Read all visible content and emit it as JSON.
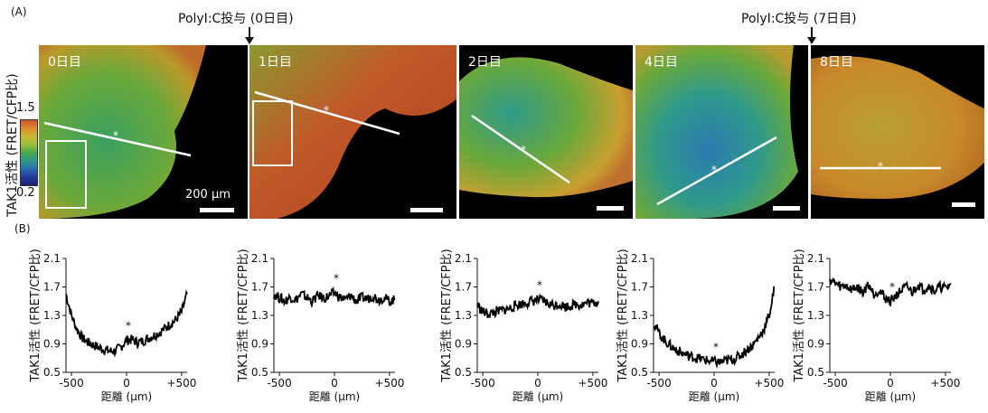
{
  "figure": {
    "label_a": "(A)",
    "label_b": "(B)",
    "arrow_labels": [
      "PolyI:C投与 (0日目)",
      "PolyI:C投与 (7日目)"
    ]
  },
  "colorbar": {
    "title": "TAK1活性 (FRET/CFP比)",
    "max": "1.5",
    "min": "0.2",
    "colors": [
      "#d4542a",
      "#d98a2a",
      "#c8b830",
      "#9cbd38",
      "#4aa84a",
      "#2f9a8a",
      "#2a6fb0",
      "#24389a",
      "#1a2070"
    ]
  },
  "micrographs": [
    {
      "day": "0日目",
      "scale_text": "200 μm"
    },
    {
      "day": "1日目",
      "scale_text": ""
    },
    {
      "day": "2日目",
      "scale_text": ""
    },
    {
      "day": "4日目",
      "scale_text": ""
    },
    {
      "day": "8日目",
      "scale_text": ""
    }
  ],
  "chart_data": [
    {
      "type": "line",
      "ylabel": "TAK1活性 (FRET/CFP比)",
      "xlabel": "距離 (μm)",
      "x_ticks": [
        "-500",
        "0",
        "+500"
      ],
      "y_ticks": [
        "2.1",
        "1.7",
        "1.3",
        "0.9",
        "0.5"
      ],
      "xlim": [
        -550,
        550
      ],
      "ylim": [
        0.5,
        2.1
      ],
      "star": "*",
      "x": [
        -550,
        -500,
        -450,
        -400,
        -350,
        -300,
        -250,
        -200,
        -150,
        -100,
        -50,
        0,
        50,
        100,
        150,
        200,
        250,
        300,
        350,
        400,
        450,
        500,
        550
      ],
      "y": [
        1.6,
        1.3,
        1.1,
        0.98,
        0.92,
        0.88,
        0.85,
        0.82,
        0.8,
        0.8,
        0.86,
        0.95,
        0.96,
        0.92,
        0.94,
        0.98,
        1.02,
        1.06,
        1.12,
        1.18,
        1.24,
        1.35,
        1.6
      ]
    },
    {
      "type": "line",
      "ylabel": "TAK1活性 (FRET/CFP比)",
      "xlabel": "距離 (μm)",
      "x_ticks": [
        "-500",
        "0",
        "+500"
      ],
      "y_ticks": [
        "2.1",
        "1.7",
        "1.3",
        "0.9",
        "0.5"
      ],
      "xlim": [
        -550,
        550
      ],
      "ylim": [
        0.5,
        2.1
      ],
      "star": "*",
      "x": [
        -550,
        -500,
        -450,
        -400,
        -350,
        -300,
        -250,
        -200,
        -150,
        -100,
        -50,
        0,
        50,
        100,
        150,
        200,
        250,
        300,
        350,
        400,
        450,
        500,
        550
      ],
      "y": [
        1.6,
        1.55,
        1.5,
        1.56,
        1.52,
        1.6,
        1.55,
        1.5,
        1.58,
        1.54,
        1.57,
        1.62,
        1.55,
        1.52,
        1.58,
        1.5,
        1.55,
        1.53,
        1.58,
        1.52,
        1.55,
        1.5,
        1.52
      ]
    },
    {
      "type": "line",
      "ylabel": "TAK1活性 (FRET/CFP比)",
      "xlabel": "距離 (μm)",
      "x_ticks": [
        "-500",
        "0",
        "+500"
      ],
      "y_ticks": [
        "2.1",
        "1.7",
        "1.3",
        "0.9",
        "0.5"
      ],
      "xlim": [
        -550,
        550
      ],
      "ylim": [
        0.5,
        2.1
      ],
      "star": "*",
      "x": [
        -550,
        -500,
        -450,
        -400,
        -350,
        -300,
        -250,
        -200,
        -150,
        -100,
        -50,
        0,
        50,
        100,
        150,
        200,
        250,
        300,
        350,
        400,
        450,
        500,
        550
      ],
      "y": [
        1.45,
        1.35,
        1.32,
        1.34,
        1.36,
        1.38,
        1.4,
        1.44,
        1.46,
        1.48,
        1.5,
        1.52,
        1.5,
        1.46,
        1.44,
        1.46,
        1.42,
        1.44,
        1.46,
        1.45,
        1.48,
        1.47,
        1.5
      ]
    },
    {
      "type": "line",
      "ylabel": "TAK1活性 (FRET/CFP比)",
      "xlabel": "距離 (μm)",
      "x_ticks": [
        "-500",
        "0",
        "+500"
      ],
      "y_ticks": [
        "2.1",
        "1.7",
        "1.3",
        "0.9",
        "0.5"
      ],
      "xlim": [
        -550,
        550
      ],
      "ylim": [
        0.5,
        2.1
      ],
      "star": "*",
      "x": [
        -550,
        -500,
        -450,
        -400,
        -350,
        -300,
        -250,
        -200,
        -150,
        -100,
        -50,
        0,
        50,
        100,
        150,
        200,
        250,
        300,
        350,
        400,
        450,
        500,
        550
      ],
      "y": [
        1.2,
        1.05,
        0.95,
        0.88,
        0.82,
        0.78,
        0.74,
        0.72,
        0.7,
        0.68,
        0.66,
        0.65,
        0.64,
        0.66,
        0.68,
        0.7,
        0.75,
        0.82,
        0.88,
        0.98,
        1.1,
        1.3,
        1.7
      ]
    },
    {
      "type": "line",
      "ylabel": "TAK1活性 (FRET/CFP比)",
      "xlabel": "距離 (μm)",
      "x_ticks": [
        "-500",
        "0",
        "+500"
      ],
      "y_ticks": [
        "2.1",
        "1.7",
        "1.3",
        "0.9",
        "0.5"
      ],
      "xlim": [
        -550,
        550
      ],
      "ylim": [
        0.5,
        2.1
      ],
      "star": "*",
      "x": [
        -550,
        -500,
        -450,
        -400,
        -350,
        -300,
        -250,
        -200,
        -150,
        -100,
        -50,
        0,
        50,
        100,
        150,
        200,
        250,
        300,
        350,
        400,
        450,
        500,
        550
      ],
      "y": [
        1.8,
        1.75,
        1.7,
        1.72,
        1.66,
        1.7,
        1.62,
        1.74,
        1.6,
        1.66,
        1.55,
        1.5,
        1.58,
        1.65,
        1.7,
        1.62,
        1.74,
        1.66,
        1.72,
        1.64,
        1.7,
        1.68,
        1.75
      ]
    }
  ]
}
